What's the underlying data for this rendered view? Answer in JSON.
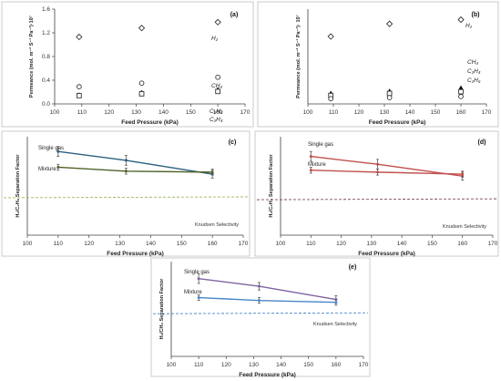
{
  "colors": {
    "axis": "#404040",
    "frame": "#bfbfbf",
    "single_c": "#2e5f7f",
    "mixture_c": "#4f6228",
    "single_d": "#c0504d",
    "mixture_d": "#c0504d",
    "single_e": "#8064a2",
    "mixture_e": "#4a86c8",
    "knudsen_c": "#9bbb59",
    "knudsen_d": "#7f4b5a",
    "knudsen_e": "#4a86c8",
    "errorbar": "#595959"
  },
  "chart_data": [
    {
      "id": "a",
      "panel_label": "(a)",
      "type": "scatter",
      "xlabel": "Feed Pressure (kPa)",
      "ylabel": "Permeance (mol. m⁻² S⁻¹ Pa⁻¹)·10⁷",
      "xlim": [
        100,
        170
      ],
      "ylim": [
        0,
        1.6
      ],
      "xticks": [
        "100",
        "110",
        "120",
        "130",
        "140",
        "150",
        "160",
        "170"
      ],
      "yticks": [
        "0.0",
        "0.4",
        "0.8",
        "1.2",
        "1.6"
      ],
      "series": [
        {
          "name": "H₂",
          "marker": "diamond",
          "x": [
            109,
            132,
            160
          ],
          "y": [
            1.13,
            1.28,
            1.38
          ]
        },
        {
          "name": "CH₄",
          "marker": "circle",
          "x": [
            109,
            132,
            160
          ],
          "y": [
            0.29,
            0.35,
            0.45
          ]
        },
        {
          "name": "C₂H₄",
          "marker": "triangle",
          "x": [
            109,
            132,
            160
          ],
          "y": [
            0.15,
            0.19,
            0.24
          ]
        },
        {
          "name": "C₂H₄",
          "marker": "square",
          "x": [
            109,
            132,
            160
          ],
          "y": [
            0.14,
            0.17,
            0.21
          ]
        }
      ]
    },
    {
      "id": "b",
      "panel_label": "(b)",
      "type": "scatter",
      "xlabel": "Feed Pressure (kPa)",
      "ylabel": "Permeance (mol. m⁻² S⁻¹ Pa⁻¹)· 10⁷",
      "xlim": [
        100,
        170
      ],
      "ylim": [
        0,
        0.45
      ],
      "xticks": [
        "100",
        "110",
        "120",
        "130",
        "140",
        "150",
        "160",
        "170"
      ],
      "yticks": [],
      "series": [
        {
          "name": "H₂",
          "marker": "diamond",
          "x": [
            109,
            132,
            160
          ],
          "y": [
            0.32,
            0.38,
            0.4
          ]
        },
        {
          "name": "CH₄",
          "marker": "triangle",
          "x": [
            109,
            132,
            160
          ],
          "y": [
            0.05,
            0.06,
            0.075
          ]
        },
        {
          "name": "C₂H₄",
          "marker": "square",
          "x": [
            109,
            132,
            160
          ],
          "y": [
            0.04,
            0.05,
            0.058
          ]
        },
        {
          "name": "C₂H₆",
          "marker": "circle",
          "x": [
            109,
            132,
            160
          ],
          "y": [
            0.025,
            0.03,
            0.035
          ]
        }
      ]
    },
    {
      "id": "c",
      "panel_label": "(c)",
      "type": "line",
      "xlabel": "Feed Pressure (kPa)",
      "ylabel": "H₂/C₂H₆ Separation Factor",
      "xlim": [
        100,
        170
      ],
      "ylim": [
        0,
        10
      ],
      "xticks": [
        "100",
        "110",
        "120",
        "130",
        "140",
        "150",
        "160",
        "170"
      ],
      "yticks": [],
      "series": [
        {
          "name": "Single gas",
          "x": [
            110,
            132,
            160
          ],
          "y": [
            8.5,
            7.6,
            6.2
          ],
          "err": [
            0.5,
            0.5,
            0.4
          ],
          "color_key": "single_c"
        },
        {
          "name": "Mixture",
          "x": [
            110,
            132,
            160
          ],
          "y": [
            6.9,
            6.5,
            6.4
          ],
          "err": [
            0.3,
            0.3,
            0.3
          ],
          "color_key": "mixture_c"
        }
      ],
      "reference": {
        "label": "Knudsen Selectivity",
        "y": 3.8,
        "color_key": "knudsen_c"
      }
    },
    {
      "id": "d",
      "panel_label": "(d)",
      "type": "line",
      "xlabel": "Feed Pressure (kPa)",
      "ylabel": "H₂/C₂H₄ Separation Factor",
      "xlim": [
        100,
        170
      ],
      "ylim": [
        0,
        10
      ],
      "xticks": [
        "100",
        "110",
        "120",
        "130",
        "140",
        "150",
        "160",
        "170"
      ],
      "yticks": [],
      "series": [
        {
          "name": "Single gas",
          "x": [
            110,
            132,
            160
          ],
          "y": [
            8.0,
            7.2,
            6.0
          ],
          "err": [
            0.5,
            0.5,
            0.4
          ],
          "color_key": "single_d"
        },
        {
          "name": "Mixture",
          "x": [
            110,
            132,
            160
          ],
          "y": [
            6.6,
            6.4,
            6.2
          ],
          "err": [
            0.3,
            0.3,
            0.3
          ],
          "color_key": "mixture_d"
        }
      ],
      "reference": {
        "label": "Knudsen Selectivity",
        "y": 3.6,
        "color_key": "knudsen_d"
      }
    },
    {
      "id": "e",
      "panel_label": "(e)",
      "type": "line",
      "xlabel": "Feed Pressure (kPa)",
      "ylabel": "H₂/CH₄ Separation Factor",
      "xlim": [
        100,
        170
      ],
      "ylim": [
        0,
        5
      ],
      "xticks": [
        "100",
        "110",
        "120",
        "130",
        "140",
        "150",
        "160",
        "170"
      ],
      "yticks": [],
      "series": [
        {
          "name": "Single gas",
          "x": [
            110,
            132,
            160
          ],
          "y": [
            4.1,
            3.7,
            3.0
          ],
          "err": [
            0.25,
            0.2,
            0.2
          ],
          "color_key": "single_e"
        },
        {
          "name": "Mixture",
          "x": [
            110,
            132,
            160
          ],
          "y": [
            3.1,
            2.95,
            2.85
          ],
          "err": [
            0.15,
            0.15,
            0.15
          ],
          "color_key": "mixture_e"
        }
      ],
      "reference": {
        "label": "Knudsen Selectivity",
        "y": 2.25,
        "color_key": "knudsen_e"
      }
    }
  ]
}
